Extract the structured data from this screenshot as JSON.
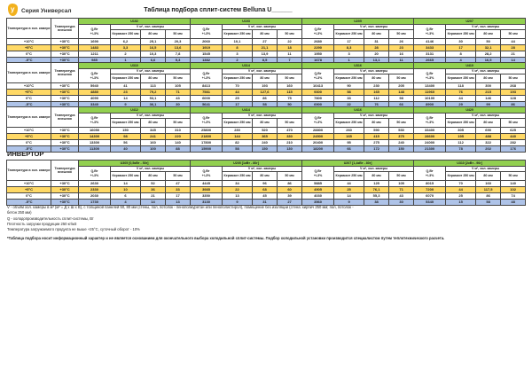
{
  "page": {
    "series_label": "Серия Универсал",
    "title": "Таблица подбора сплит-систем Belluna U______",
    "logo_letter": "у",
    "inverter_heading": "ИНВЕРТОР"
  },
  "colors": {
    "green_header": "#92d050",
    "yellow_row": "#ffd966",
    "blue_row": "#aec3e8",
    "logo_yellow": "#f2b11d"
  },
  "table_headers": {
    "temp_chamber": "Температура в хол. камере",
    "temp_outside": "Температура внешняя",
    "q_label": "Q,Вт\n+/-3%",
    "v_label": "V м³, хол. камеры",
    "col_keramzit": "Керамзит 250 мм",
    "col_80": "80 мм",
    "col_50": "50 мм"
  },
  "temp_rows": [
    {
      "chamber": "+10°С",
      "outside": "+30°С",
      "highlight": "none"
    },
    {
      "chamber": "+5°С",
      "outside": "+30°С",
      "highlight": "yellow"
    },
    {
      "chamber": "0°С",
      "outside": "+30°С",
      "highlight": "none"
    },
    {
      "chamber": "-5°С",
      "outside": "+30°С",
      "highlight": "blue"
    }
  ],
  "tables": [
    {
      "groups": [
        {
          "model": "U102",
          "rows": [
            [
              "1690",
              "6,2",
              "25,1",
              "20,3"
            ],
            [
              "1483",
              "3,3",
              "16,5",
              "13,6"
            ],
            [
              "1211",
              "2",
              "10,3",
              "7,8"
            ],
            [
              "985",
              "1",
              "6,6",
              "5,3"
            ]
          ]
        },
        {
          "model": "U103",
          "rows": [
            [
              "2060",
              "10,1",
              "27",
              "22"
            ],
            [
              "1919",
              "8",
              "21,1",
              "18"
            ],
            [
              "1545",
              "3",
              "13,9",
              "11"
            ],
            [
              "1382",
              "2",
              "8,5",
              "7"
            ]
          ]
        },
        {
          "model": "U205",
          "rows": [
            [
              "2680",
              "17",
              "31",
              "26"
            ],
            [
              "2290",
              "8,3",
              "28",
              "23"
            ],
            [
              "1950",
              "3",
              "20",
              "16"
            ],
            [
              "1678",
              "1",
              "13,1",
              "11"
            ]
          ]
        },
        {
          "model": "U207",
          "rows": [
            [
              "4146",
              "30",
              "50",
              "44"
            ],
            [
              "3433",
              "17",
              "32,1",
              "28"
            ],
            [
              "3131",
              "8",
              "28,2",
              "21"
            ],
            [
              "2665",
              "4",
              "16,5",
              "14"
            ]
          ]
        }
      ]
    },
    {
      "groups": [
        {
          "model": "U310",
          "rows": [
            [
              "5940",
              "41",
              "113",
              "105"
            ],
            [
              "4880",
              "23",
              "79,2",
              "71"
            ],
            [
              "4090",
              "14",
              "53,1",
              "43"
            ],
            [
              "3340",
              "9",
              "36,1",
              "30"
            ]
          ]
        },
        {
          "model": "U314",
          "rows": [
            [
              "8413",
              "70",
              "193",
              "160"
            ],
            [
              "7581",
              "44",
              "127,6",
              "115"
            ],
            [
              "6000",
              "25",
              "86",
              "75"
            ],
            [
              "5641",
              "17",
              "58",
              "50"
            ]
          ]
        },
        {
          "model": "U316",
          "rows": [
            [
              "10413",
              "90",
              "230",
              "205"
            ],
            [
              "9300",
              "58",
              "165",
              "148"
            ],
            [
              "7800",
              "33",
              "112",
              "98"
            ],
            [
              "6900",
              "22",
              "76",
              "66"
            ]
          ]
        },
        {
          "model": "U410",
          "rows": [
            [
              "13400",
              "118",
              "300",
              "268"
            ],
            [
              "11960",
              "76",
              "215",
              "193"
            ],
            [
              "10100",
              "44",
              "146",
              "128"
            ],
            [
              "8900",
              "29",
              "99",
              "86"
            ]
          ]
        }
      ]
    },
    {
      "groups": [
        {
          "model": "U412",
          "rows": [
            [
              "16050",
              "150",
              "345",
              "310"
            ],
            [
              "14300",
              "98",
              "241",
              "220"
            ],
            [
              "13300",
              "56",
              "160",
              "140"
            ],
            [
              "11300",
              "40",
              "100",
              "88"
            ]
          ]
        },
        {
          "model": "U414",
          "rows": [
            [
              "25800",
              "230",
              "520",
              "470"
            ],
            [
              "21800",
              "144",
              "365",
              "330"
            ],
            [
              "17800",
              "82",
              "240",
              "210"
            ],
            [
              "15900",
              "58",
              "150",
              "130"
            ]
          ]
        },
        {
          "model": "U416",
          "rows": [
            [
              "28800",
              "260",
              "590",
              "530"
            ],
            [
              "24500",
              "165",
              "415",
              "375"
            ],
            [
              "20400",
              "95",
              "275",
              "240"
            ],
            [
              "18200",
              "66",
              "172",
              "150"
            ]
          ]
        },
        {
          "model": "U420",
          "rows": [
            [
              "33400",
              "305",
              "690",
              "625"
            ],
            [
              "28600",
              "195",
              "488",
              "440"
            ],
            [
              "24000",
              "112",
              "322",
              "282"
            ],
            [
              "21300",
              "78",
              "202",
              "176"
            ]
          ]
        }
      ]
    },
    {
      "groups": [
        {
          "model": "U305 [0,5кВт - 50г]",
          "rows": [
            [
              "2630",
              "14",
              "52",
              "47"
            ],
            [
              "2330",
              "10",
              "36",
              "33"
            ],
            [
              "2030",
              "6",
              "21",
              "17"
            ],
            [
              "1730",
              "4",
              "14",
              "13"
            ]
          ]
        },
        {
          "model": "U205 [1кВт - 80г]",
          "rows": [
            [
              "4445",
              "34",
              "96",
              "86"
            ],
            [
              "3985",
              "22",
              "68",
              "60"
            ],
            [
              "3350",
              "13",
              "45",
              "39"
            ],
            [
              "3130",
              "9",
              "31",
              "27"
            ]
          ]
        },
        {
          "model": "U207 [1,4кВт - 80г]",
          "rows": [
            [
              "5885",
              "44",
              "125",
              "105"
            ],
            [
              "4905",
              "25",
              "76,1",
              "71"
            ],
            [
              "4030",
              "14",
              "55,3",
              "43"
            ],
            [
              "3560",
              "9",
              "38",
              "30"
            ]
          ]
        },
        {
          "model": "U310 [2кВт - 90г]",
          "rows": [
            [
              "8015",
              "70",
              "160",
              "140"
            ],
            [
              "7200",
              "44",
              "117,5",
              "102"
            ],
            [
              "6070",
              "25",
              "86",
              "74"
            ],
            [
              "5340",
              "15",
              "58",
              "48"
            ]
          ]
        }
      ]
    }
  ],
  "table_tops": [
    20,
    70,
    120,
    180
  ],
  "footnotes": [
    "V - объём хол. камеры в м³ (м³ = Д х Ш х В), с толщиной панелей 50, 80 мм (стены, пол, потолок - пенополиуретан или пенополистирол), помещение без изоляции (стена: кирпич 250 мм; пол, потолок -",
    "бетон 250 мм)",
    "Q - холодопроизводительность сплит-системы, Вт",
    "Плотность загрузки продукции 250 кг/м3",
    "Температура загружаемого продукта не выше +25°С, суточный оборот - 10%"
  ],
  "footnote_star": "*Таблица подбора носит информационный характер и не является основанием для окончательного выбора холодильной сплит-системы. Подбор холодильной установки производится специалистом путем теплотехнического расчета."
}
